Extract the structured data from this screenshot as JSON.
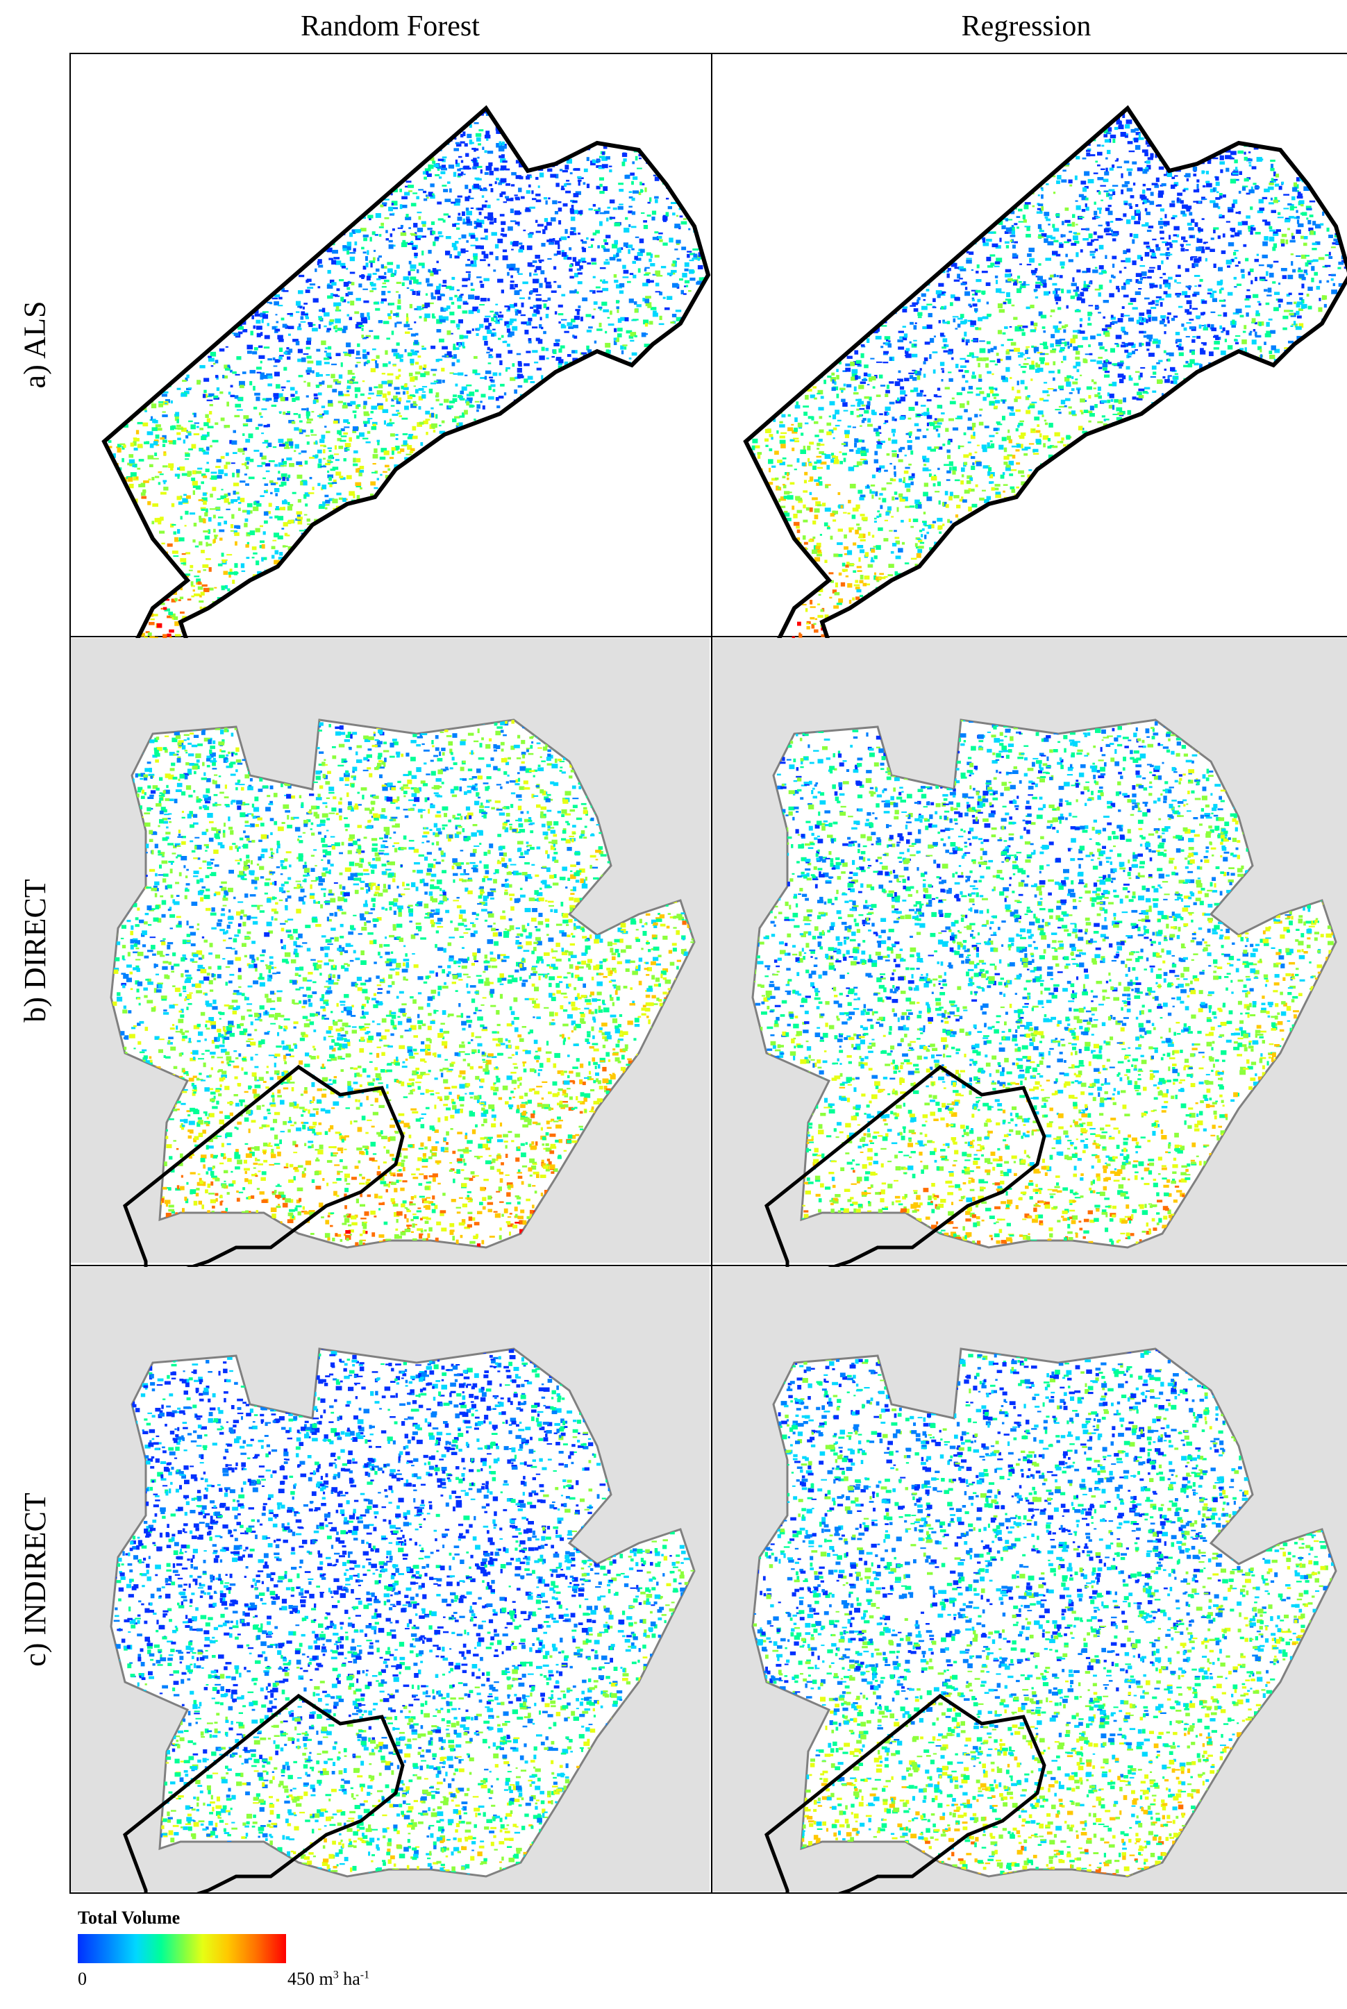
{
  "columns": [
    "Random Forest",
    "Regression"
  ],
  "rows": [
    "a) ALS",
    "b) DIRECT",
    "c) INDIRECT"
  ],
  "legend": {
    "title": "Total Volume",
    "min": "0",
    "max_value": "450 m",
    "max_exp": "3",
    "max_unit": " ha",
    "max_unit_exp": "-1"
  },
  "colors": {
    "ramp": [
      "#0030ff",
      "#0080ff",
      "#00d8ff",
      "#00ff96",
      "#8cff3c",
      "#e6ff14",
      "#ffc800",
      "#ff6e00",
      "#ff0000"
    ],
    "background_land": "#e0e0e0",
    "water": "#ffffff",
    "boundary": "#000000",
    "outline": "#808080"
  }
}
